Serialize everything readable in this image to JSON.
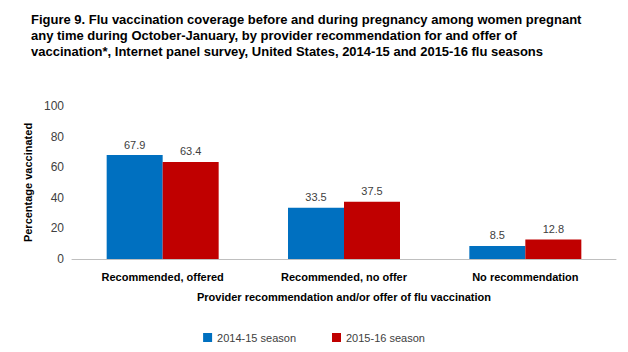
{
  "chart_data": {
    "type": "bar",
    "title": "Figure 9. Flu vaccination coverage before and during pregnancy among women pregnant any time during October-January, by provider recommendation for and offer of vaccination*, Internet panel survey, United States, 2014-15 and 2015-16 flu seasons",
    "x_label": "Provider recommendation and/or offer of flu vaccination",
    "y_label": "Percentage vaccinated",
    "categories": [
      "Recommended, offered",
      "Recommended, no offer",
      "No recommendation"
    ],
    "series": [
      {
        "name": "2014-15 season",
        "color": "#0070c0",
        "values": [
          67.9,
          33.5,
          8.5
        ]
      },
      {
        "name": "2015-16 season",
        "color": "#c00000",
        "values": [
          63.4,
          37.5,
          12.8
        ]
      }
    ],
    "ylim": [
      0,
      100
    ],
    "yticks": [
      0,
      20,
      40,
      60,
      80,
      100
    ],
    "grid": false,
    "legend": "bottom",
    "data_labels": true
  }
}
